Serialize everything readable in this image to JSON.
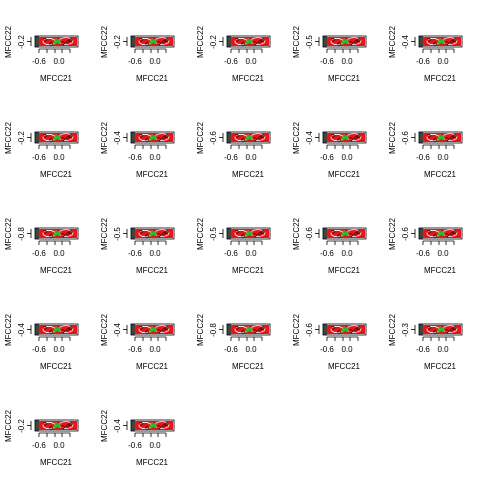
{
  "chart_data": [
    {
      "type": "scatter",
      "xlabel": "MFCC21",
      "ylabel": "MFCC22",
      "xticks": [
        "-0.6",
        "0.0"
      ],
      "yticks": [
        "-0.2"
      ]
    },
    {
      "type": "scatter",
      "xlabel": "MFCC21",
      "ylabel": "MFCC22",
      "xticks": [
        "-0.6",
        "0.0"
      ],
      "yticks": [
        "-0.2"
      ]
    },
    {
      "type": "scatter",
      "xlabel": "MFCC21",
      "ylabel": "MFCC22",
      "xticks": [
        "-0.6",
        "0.0"
      ],
      "yticks": [
        "-0.2"
      ]
    },
    {
      "type": "scatter",
      "xlabel": "MFCC21",
      "ylabel": "MFCC22",
      "xticks": [
        "-0.6",
        "0.0"
      ],
      "yticks": [
        "-0.5"
      ]
    },
    {
      "type": "scatter",
      "xlabel": "MFCC21",
      "ylabel": "MFCC22",
      "xticks": [
        "-0.6",
        "0.0"
      ],
      "yticks": [
        "-0.4"
      ]
    },
    {
      "type": "scatter",
      "xlabel": "MFCC21",
      "ylabel": "MFCC22",
      "xticks": [
        "-0.6",
        "0.0"
      ],
      "yticks": [
        "-0.2"
      ]
    },
    {
      "type": "scatter",
      "xlabel": "MFCC21",
      "ylabel": "MFCC22",
      "xticks": [
        "-0.6",
        "0.0"
      ],
      "yticks": [
        "-0.4"
      ]
    },
    {
      "type": "scatter",
      "xlabel": "MFCC21",
      "ylabel": "MFCC22",
      "xticks": [
        "-0.6",
        "0.0"
      ],
      "yticks": [
        "-0.6"
      ]
    },
    {
      "type": "scatter",
      "xlabel": "MFCC21",
      "ylabel": "MFCC22",
      "xticks": [
        "-0.6",
        "0.0"
      ],
      "yticks": [
        "-0.4"
      ]
    },
    {
      "type": "scatter",
      "xlabel": "MFCC21",
      "ylabel": "MFCC22",
      "xticks": [
        "-0.6",
        "0.0"
      ],
      "yticks": [
        "-0.6"
      ]
    },
    {
      "type": "scatter",
      "xlabel": "MFCC21",
      "ylabel": "MFCC22",
      "xticks": [
        "-0.6",
        "0.0"
      ],
      "yticks": [
        "-0.8"
      ]
    },
    {
      "type": "scatter",
      "xlabel": "MFCC21",
      "ylabel": "MFCC22",
      "xticks": [
        "-0.6",
        "0.0"
      ],
      "yticks": [
        "-0.5"
      ]
    },
    {
      "type": "scatter",
      "xlabel": "MFCC21",
      "ylabel": "MFCC22",
      "xticks": [
        "-0.6",
        "0.0"
      ],
      "yticks": [
        "-0.5"
      ]
    },
    {
      "type": "scatter",
      "xlabel": "MFCC21",
      "ylabel": "MFCC22",
      "xticks": [
        "-0.6",
        "0.0"
      ],
      "yticks": [
        "-0.6"
      ]
    },
    {
      "type": "scatter",
      "xlabel": "MFCC21",
      "ylabel": "MFCC22",
      "xticks": [
        "-0.6",
        "0.0"
      ],
      "yticks": [
        "-0.6"
      ]
    },
    {
      "type": "scatter",
      "xlabel": "MFCC21",
      "ylabel": "MFCC22",
      "xticks": [
        "-0.6",
        "0.0"
      ],
      "yticks": [
        "-0.4"
      ]
    },
    {
      "type": "scatter",
      "xlabel": "MFCC21",
      "ylabel": "MFCC22",
      "xticks": [
        "-0.6",
        "0.0"
      ],
      "yticks": [
        "-0.4"
      ]
    },
    {
      "type": "scatter",
      "xlabel": "MFCC21",
      "ylabel": "MFCC22",
      "xticks": [
        "-0.6",
        "0.0"
      ],
      "yticks": [
        "-0.8"
      ]
    },
    {
      "type": "scatter",
      "xlabel": "MFCC21",
      "ylabel": "MFCC22",
      "xticks": [
        "-0.6",
        "0.0"
      ],
      "yticks": [
        "-0.6"
      ]
    },
    {
      "type": "scatter",
      "xlabel": "MFCC21",
      "ylabel": "MFCC22",
      "xticks": [
        "-0.6",
        "0.0"
      ],
      "yticks": [
        "-0.3"
      ]
    },
    {
      "type": "scatter",
      "xlabel": "MFCC21",
      "ylabel": "MFCC22",
      "xticks": [
        "-0.6",
        "0.0"
      ],
      "yticks": [
        "-0.2"
      ]
    },
    {
      "type": "scatter",
      "xlabel": "MFCC21",
      "ylabel": "MFCC22",
      "xticks": [
        "-0.6",
        "0.0"
      ],
      "yticks": [
        "-0.4"
      ]
    }
  ],
  "colors": {
    "fill": "#e8141c",
    "highlight": "#2fb52f",
    "outline": "#000000",
    "grid_bg": "#ffffff"
  }
}
